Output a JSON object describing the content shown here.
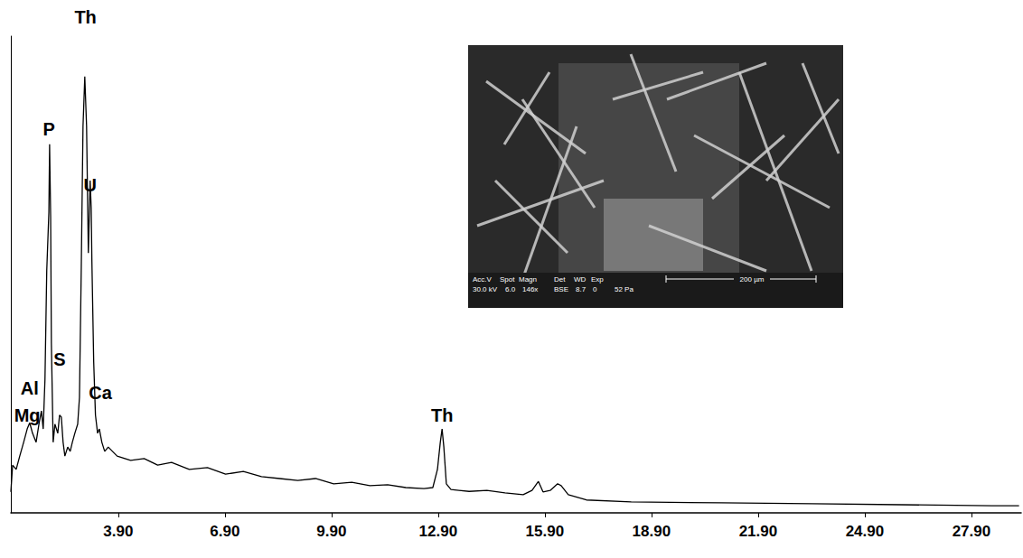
{
  "chart_data": {
    "type": "line",
    "color": "#000000",
    "grid": false,
    "tick_labels": "x",
    "xlim": [
      0.88,
      29.3
    ],
    "ylim": [
      0,
      100
    ],
    "xticks": [
      {
        "value": 3.9,
        "label": "3.90"
      },
      {
        "value": 6.9,
        "label": "6.90"
      },
      {
        "value": 9.9,
        "label": "9.90"
      },
      {
        "value": 12.9,
        "label": "12.90"
      },
      {
        "value": 15.9,
        "label": "15.90"
      },
      {
        "value": 18.9,
        "label": "18.90"
      },
      {
        "value": 21.9,
        "label": "21.90"
      },
      {
        "value": 24.9,
        "label": "24.90"
      },
      {
        "value": 27.9,
        "label": "27.90"
      }
    ],
    "x": [
      0.88,
      0.93,
      1.03,
      1.13,
      1.24,
      1.34,
      1.41,
      1.49,
      1.59,
      1.67,
      1.74,
      1.79,
      1.84,
      1.89,
      1.95,
      1.97,
      2.0,
      2.02,
      2.07,
      2.12,
      2.2,
      2.25,
      2.3,
      2.35,
      2.4,
      2.48,
      2.55,
      2.61,
      2.68,
      2.76,
      2.81,
      2.86,
      2.91,
      2.96,
      3.01,
      3.06,
      3.09,
      3.11,
      3.14,
      3.16,
      3.21,
      3.26,
      3.32,
      3.37,
      3.44,
      3.52,
      3.62,
      3.87,
      4.25,
      4.63,
      5.01,
      5.4,
      5.9,
      6.41,
      6.92,
      7.42,
      7.93,
      8.44,
      8.95,
      9.45,
      9.96,
      10.47,
      10.98,
      11.48,
      11.99,
      12.5,
      12.75,
      12.88,
      12.96,
      13.01,
      13.06,
      13.13,
      13.26,
      13.77,
      14.27,
      14.78,
      15.29,
      15.54,
      15.72,
      15.85,
      16.05,
      16.26,
      16.36,
      16.56,
      17.07,
      18.33,
      20.87,
      23.41,
      25.94,
      28.48,
      29.24
    ],
    "values": [
      4.4,
      10.0,
      9.1,
      11.9,
      14.8,
      17.6,
      18.9,
      16.7,
      14.8,
      18.6,
      21.4,
      17.6,
      28.0,
      50.8,
      63.1,
      77.3,
      62.1,
      35.6,
      14.8,
      18.6,
      16.7,
      20.5,
      20.1,
      14.8,
      11.9,
      13.8,
      12.9,
      14.8,
      16.7,
      18.6,
      24.2,
      50.8,
      81.1,
      91.5,
      81.1,
      54.5,
      63.1,
      69.7,
      64.0,
      52.7,
      31.8,
      20.5,
      16.7,
      17.6,
      14.8,
      12.9,
      13.8,
      11.9,
      11.0,
      11.4,
      10.0,
      10.6,
      9.1,
      9.5,
      8.1,
      8.7,
      7.6,
      7.2,
      6.8,
      7.2,
      6.1,
      6.4,
      5.7,
      5.9,
      5.3,
      5.1,
      5.3,
      9.1,
      14.8,
      17.6,
      13.8,
      6.1,
      4.9,
      4.5,
      4.7,
      4.2,
      3.8,
      4.7,
      6.6,
      4.4,
      4.7,
      6.1,
      5.7,
      3.8,
      2.7,
      2.3,
      2.1,
      1.9,
      1.7,
      1.5,
      1.5
    ],
    "annotations": [
      {
        "text": "Th",
        "x": 2.98,
        "y": 104
      },
      {
        "text": "P",
        "x": 1.95,
        "y": 80.5
      },
      {
        "text": "U",
        "x": 3.11,
        "y": 68.8
      },
      {
        "text": "S",
        "x": 2.25,
        "y": 32.2
      },
      {
        "text": "Al",
        "x": 1.41,
        "y": 26.1
      },
      {
        "text": "Mg",
        "x": 1.34,
        "y": 20.5
      },
      {
        "text": "Ca",
        "x": 3.4,
        "y": 25.2
      },
      {
        "text": "Th",
        "x": 13.01,
        "y": 20.5
      }
    ]
  },
  "inset": {
    "header": [
      "Acc.V",
      "Spot",
      "Magn",
      "Det",
      "WD",
      "Exp"
    ],
    "values": [
      "30.0 kV",
      "6.0",
      "146x",
      "BSE",
      "8.7",
      "0",
      "52 Pa"
    ],
    "scale_bar": "200 µm"
  }
}
